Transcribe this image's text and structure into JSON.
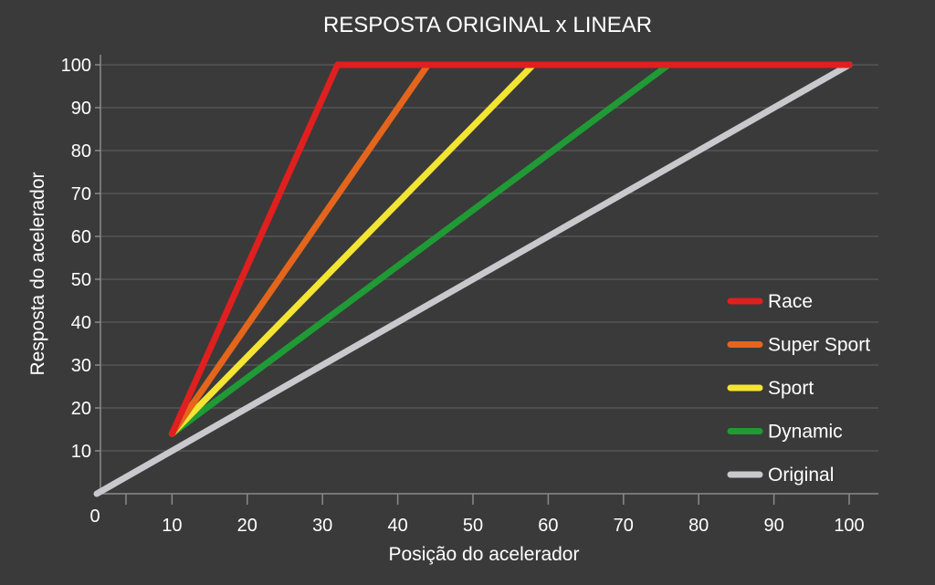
{
  "chart_data": {
    "type": "line",
    "title": "RESPOSTA ORIGINAL x LINEAR",
    "xlabel": "Posição do acelerador",
    "ylabel": "Resposta do acelerador",
    "origin_label": "0",
    "xlim": [
      0,
      100
    ],
    "ylim": [
      0,
      100
    ],
    "x_ticks": [
      10,
      20,
      30,
      40,
      50,
      60,
      70,
      80,
      90,
      100
    ],
    "y_ticks": [
      10,
      20,
      30,
      40,
      50,
      60,
      70,
      80,
      90,
      100
    ],
    "grid": "horizontal",
    "legend_position": "right",
    "series": [
      {
        "name": "Race",
        "color": "#e01f1f",
        "points": [
          [
            10,
            14
          ],
          [
            32,
            100
          ],
          [
            100,
            100
          ]
        ]
      },
      {
        "name": "Super Sport",
        "color": "#e4651c",
        "points": [
          [
            10,
            14
          ],
          [
            44,
            100
          ],
          [
            100,
            100
          ]
        ]
      },
      {
        "name": "Sport",
        "color": "#f3e532",
        "points": [
          [
            10,
            14
          ],
          [
            58,
            100
          ],
          [
            100,
            100
          ]
        ]
      },
      {
        "name": "Dynamic",
        "color": "#1f9a35",
        "points": [
          [
            10,
            14
          ],
          [
            76,
            100
          ],
          [
            100,
            100
          ]
        ]
      },
      {
        "name": "Original",
        "color": "#c9c8cd",
        "points": [
          [
            0,
            0
          ],
          [
            100,
            100
          ]
        ]
      }
    ]
  }
}
